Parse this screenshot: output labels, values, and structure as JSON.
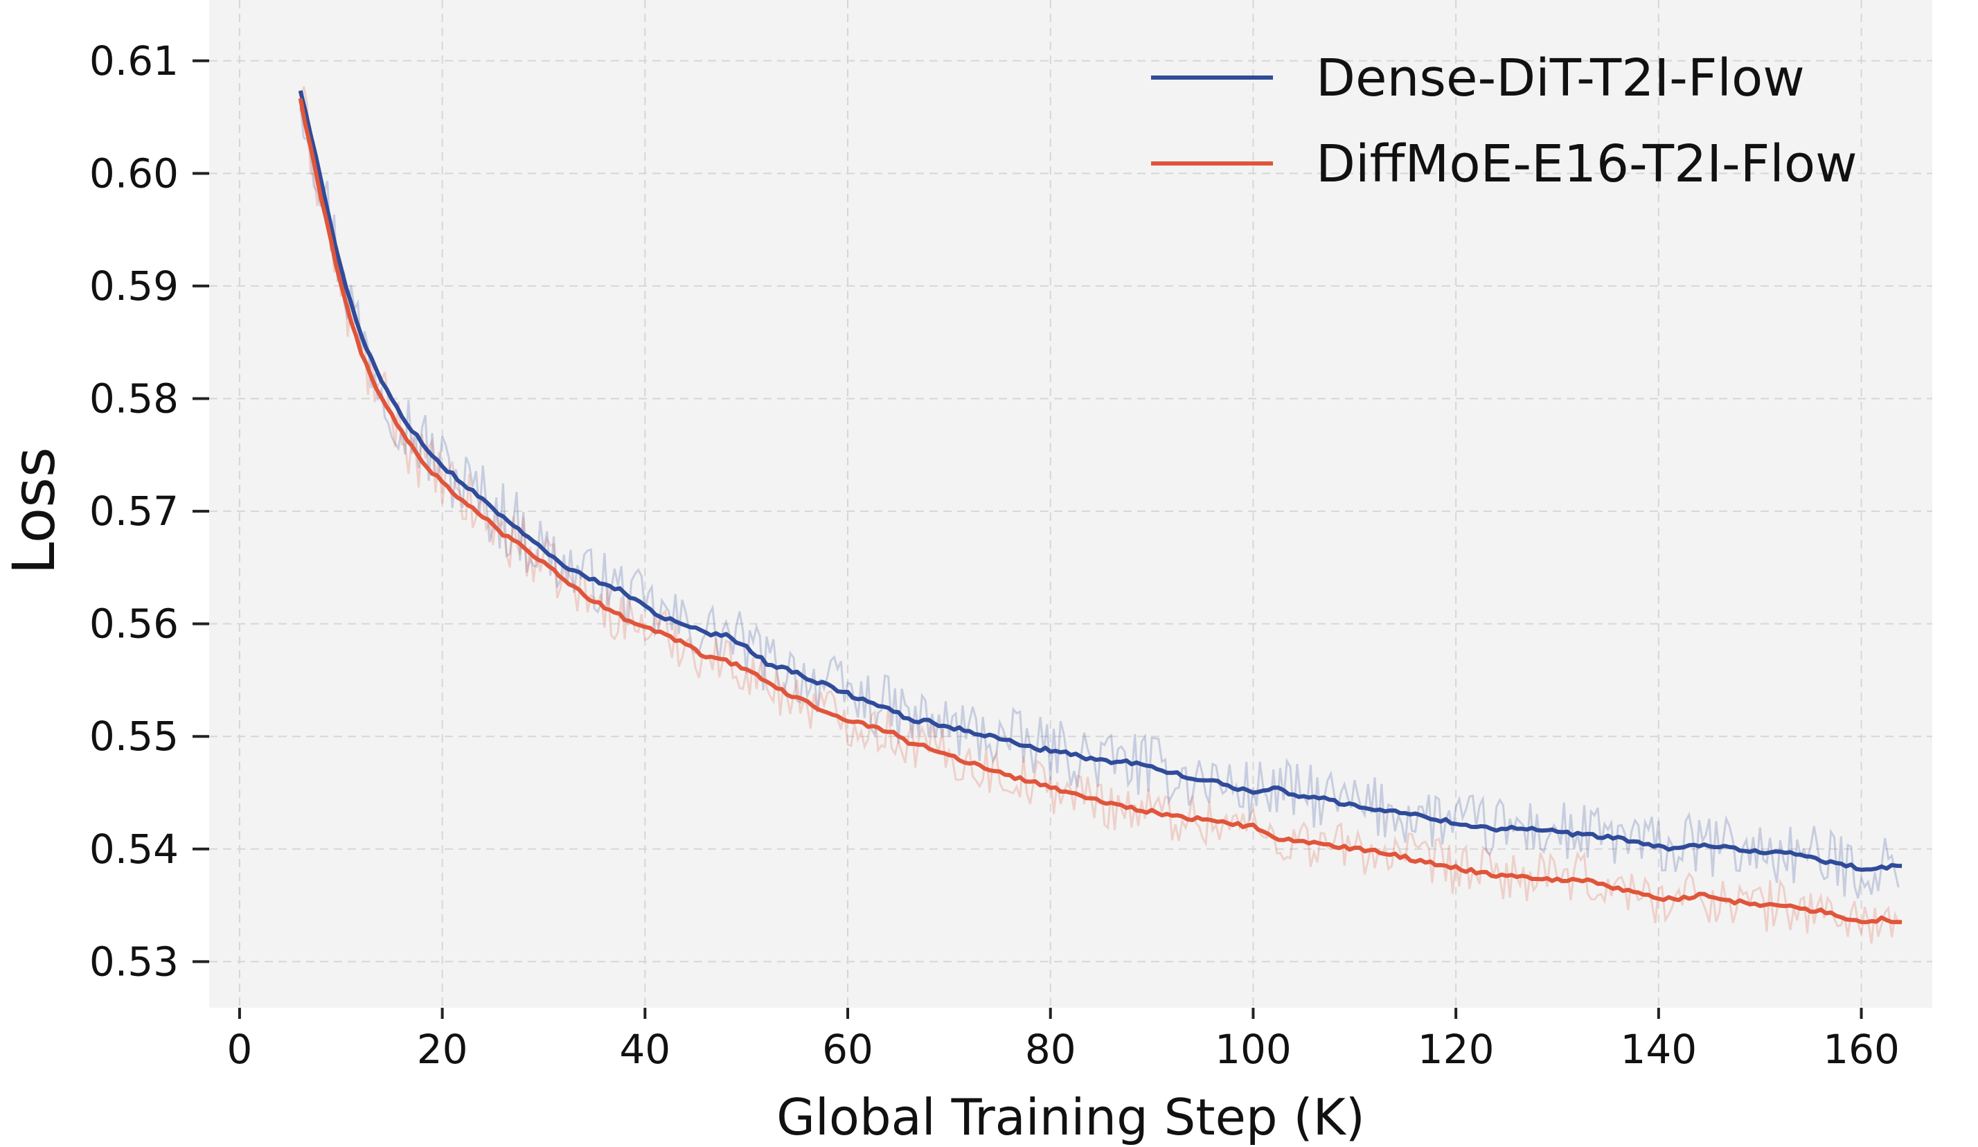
{
  "chart_data": {
    "type": "line",
    "title": "",
    "xlabel": "Global Training Step (K)",
    "ylabel": "Loss",
    "xlim": [
      -3,
      167
    ],
    "ylim": [
      0.5259,
      0.6154
    ],
    "xticks": [
      0,
      20,
      40,
      60,
      80,
      100,
      120,
      140,
      160
    ],
    "yticks": [
      0.53,
      0.54,
      0.55,
      0.56,
      0.57,
      0.58,
      0.59,
      0.6,
      0.61
    ],
    "xtick_labels": [
      "0",
      "20",
      "40",
      "60",
      "80",
      "100",
      "120",
      "140",
      "160"
    ],
    "ytick_labels": [
      "0.53",
      "0.54",
      "0.55",
      "0.56",
      "0.57",
      "0.58",
      "0.59",
      "0.60",
      "0.61"
    ],
    "grid": true,
    "legend_position": "top-right",
    "raw_noise": [
      0.0022,
      0.0018
    ],
    "series": [
      {
        "name": "Dense-DiT-T2I-Flow",
        "color": "#2f4b9a",
        "x": [
          6,
          8,
          10,
          12,
          14,
          16,
          18,
          20,
          22,
          24,
          26,
          28,
          30,
          32,
          34,
          36,
          38,
          40,
          42,
          44,
          46,
          48,
          50,
          52,
          54,
          56,
          58,
          60,
          62,
          64,
          66,
          68,
          70,
          72,
          74,
          76,
          78,
          80,
          82,
          84,
          86,
          88,
          90,
          92,
          94,
          96,
          98,
          100,
          102,
          104,
          106,
          108,
          110,
          112,
          114,
          116,
          118,
          120,
          122,
          124,
          126,
          128,
          130,
          132,
          134,
          136,
          138,
          140,
          142,
          144,
          146,
          148,
          150,
          152,
          154,
          156,
          158,
          160,
          162,
          164
        ],
        "values": [
          0.6075,
          0.5995,
          0.5915,
          0.5855,
          0.5815,
          0.5785,
          0.576,
          0.574,
          0.5725,
          0.571,
          0.5695,
          0.568,
          0.5665,
          0.5652,
          0.5642,
          0.5636,
          0.5628,
          0.5615,
          0.5605,
          0.5598,
          0.5592,
          0.559,
          0.558,
          0.5565,
          0.556,
          0.5552,
          0.5545,
          0.5538,
          0.553,
          0.5525,
          0.5515,
          0.5513,
          0.5508,
          0.5505,
          0.55,
          0.5497,
          0.549,
          0.5488,
          0.5484,
          0.548,
          0.5478,
          0.5477,
          0.5472,
          0.5468,
          0.5463,
          0.546,
          0.5455,
          0.545,
          0.5455,
          0.5448,
          0.5447,
          0.5442,
          0.5438,
          0.5436,
          0.5433,
          0.543,
          0.5427,
          0.5423,
          0.542,
          0.5418,
          0.5419,
          0.5417,
          0.5415,
          0.5413,
          0.5411,
          0.541,
          0.5405,
          0.5402,
          0.54,
          0.5404,
          0.5402,
          0.54,
          0.5397,
          0.5396,
          0.5395,
          0.539,
          0.5387,
          0.5382,
          0.5383,
          0.5385
        ]
      },
      {
        "name": "DiffMoE-E16-T2I-Flow",
        "color": "#e0553a",
        "x": [
          6,
          8,
          10,
          12,
          14,
          16,
          18,
          20,
          22,
          24,
          26,
          28,
          30,
          32,
          34,
          36,
          38,
          40,
          42,
          44,
          46,
          48,
          50,
          52,
          54,
          56,
          58,
          60,
          62,
          64,
          66,
          68,
          70,
          72,
          74,
          76,
          78,
          80,
          82,
          84,
          86,
          88,
          90,
          92,
          94,
          96,
          98,
          100,
          102,
          104,
          106,
          108,
          110,
          112,
          114,
          116,
          118,
          120,
          122,
          124,
          126,
          128,
          130,
          132,
          134,
          136,
          138,
          140,
          142,
          144,
          146,
          148,
          150,
          152,
          154,
          156,
          158,
          160,
          162,
          164
        ],
        "values": [
          0.6065,
          0.598,
          0.59,
          0.584,
          0.58,
          0.577,
          0.5745,
          0.5725,
          0.571,
          0.5695,
          0.568,
          0.5668,
          0.5655,
          0.564,
          0.5625,
          0.5615,
          0.5605,
          0.5598,
          0.559,
          0.5583,
          0.557,
          0.5567,
          0.556,
          0.5548,
          0.5538,
          0.553,
          0.5522,
          0.5515,
          0.551,
          0.5505,
          0.5495,
          0.549,
          0.5483,
          0.5477,
          0.547,
          0.5465,
          0.546,
          0.5455,
          0.545,
          0.5445,
          0.544,
          0.5437,
          0.5433,
          0.543,
          0.5427,
          0.5425,
          0.5422,
          0.542,
          0.541,
          0.5408,
          0.5405,
          0.5402,
          0.54,
          0.5398,
          0.5395,
          0.539,
          0.5387,
          0.5383,
          0.538,
          0.5377,
          0.5376,
          0.5374,
          0.5373,
          0.5373,
          0.537,
          0.5365,
          0.536,
          0.5357,
          0.5355,
          0.536,
          0.5355,
          0.5353,
          0.535,
          0.535,
          0.5347,
          0.5345,
          0.534,
          0.5335,
          0.5338,
          0.5335
        ]
      }
    ]
  }
}
